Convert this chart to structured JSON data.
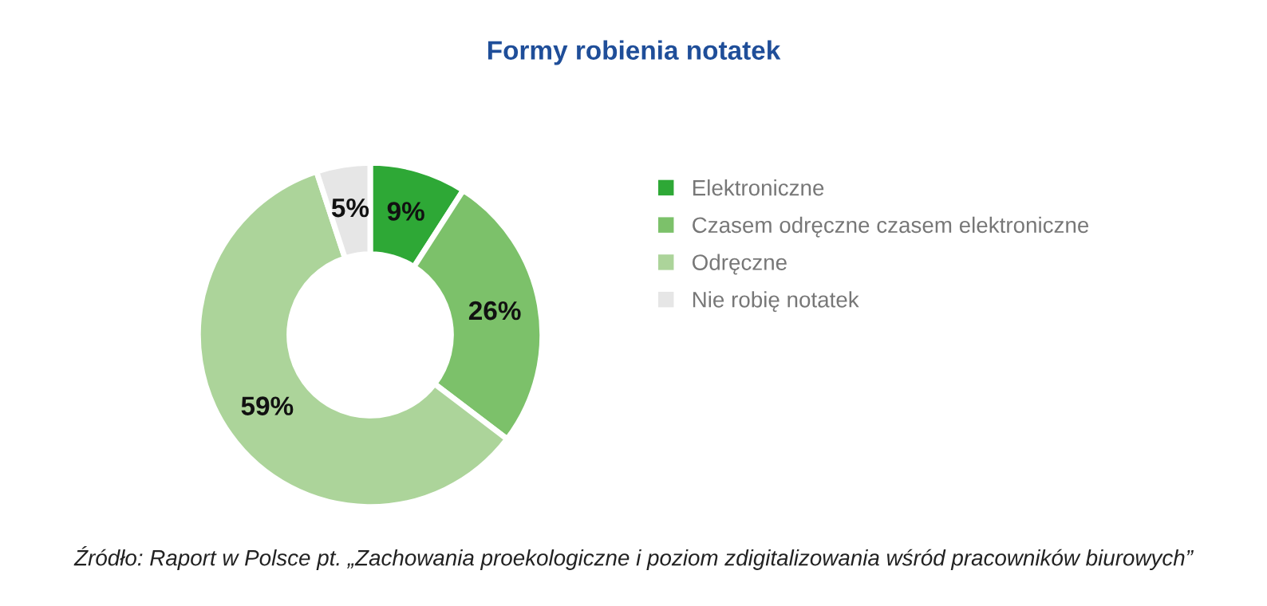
{
  "chart_data": {
    "type": "donut",
    "title": "Formy robienia notatek",
    "categories": [
      "Elektroniczne",
      "Czasem odręczne czasem elektroniczne",
      "Odręczne",
      "Nie robię notatek"
    ],
    "values": [
      9,
      26,
      59,
      5
    ],
    "value_labels": [
      "9%",
      "26%",
      "59%",
      "5%"
    ],
    "colors": [
      "#2ea836",
      "#7cc16a",
      "#acd49a",
      "#e6e6e6"
    ],
    "legend": "right",
    "annotations": [
      "Źródło: Raport w Polsce pt. „Zachowania proekologiczne i poziom zdigitalizowania wśród pracowników biurowych”"
    ]
  }
}
